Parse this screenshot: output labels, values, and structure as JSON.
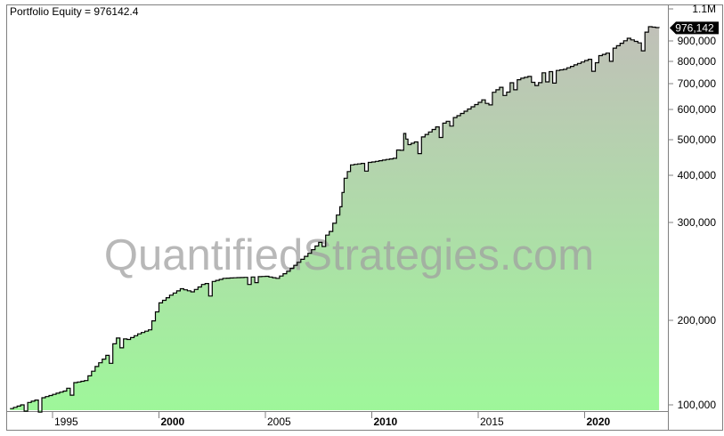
{
  "chart_data": {
    "type": "area",
    "title": "Portfolio Equity = 976142.4",
    "watermark": "QuantifiedStrategies.com",
    "last_value_label": "976,142",
    "y_scale": "log",
    "ylim": [
      97000,
      1100000
    ],
    "xlim": [
      1993.0,
      2023.6
    ],
    "grid": false,
    "x_ticks": [
      {
        "label": "1995",
        "value": 1995,
        "bold": false
      },
      {
        "label": "2000",
        "value": 2000,
        "bold": true
      },
      {
        "label": "2005",
        "value": 2005,
        "bold": false
      },
      {
        "label": "2010",
        "value": 2010,
        "bold": true
      },
      {
        "label": "2015",
        "value": 2015,
        "bold": false
      },
      {
        "label": "2020",
        "value": 2020,
        "bold": true
      }
    ],
    "y_ticks": [
      {
        "label": "100,000",
        "value": 100000
      },
      {
        "label": "200,000",
        "value": 200000
      },
      {
        "label": "300,000",
        "value": 300000
      },
      {
        "label": "400,000",
        "value": 400000
      },
      {
        "label": "500,000",
        "value": 500000
      },
      {
        "label": "600,000",
        "value": 600000
      },
      {
        "label": "700,000",
        "value": 700000
      },
      {
        "label": "800,000",
        "value": 800000
      },
      {
        "label": "900,000",
        "value": 900000
      },
      {
        "label": "1.1M",
        "value": 1100000
      }
    ],
    "series": [
      {
        "x": [
          1993.0,
          1993.5,
          1994.0,
          1994.5,
          1995.0,
          1995.5,
          1996.0,
          1996.5,
          1997.0,
          1997.5,
          1998.0,
          1998.5,
          1999.0,
          1999.5,
          2000.0,
          2000.5,
          2001.0,
          2001.5,
          2002.0,
          2003.0,
          2004.0,
          2005.0,
          2005.5,
          2006.0,
          2007.0,
          2008.0,
          2008.5,
          2008.7,
          2009.0,
          2010.0,
          2011.0,
          2011.5,
          2011.7,
          2012.0,
          2013.0,
          2014.0,
          2015.0,
          2016.0,
          2017.0,
          2018.0,
          2019.0,
          2020.0,
          2021.0,
          2022.0,
          2022.5,
          2023.0,
          2023.5
        ],
        "y": [
          97000,
          100000,
          103000,
          106000,
          109000,
          112000,
          120000,
          122000,
          137000,
          150000,
          173000,
          171000,
          179000,
          185000,
          215000,
          222000,
          228000,
          225000,
          232000,
          238000,
          239000,
          240000,
          238000,
          245000,
          264000,
          289000,
          330000,
          393000,
          427000,
          435000,
          445000,
          519000,
          485000,
          493000,
          540000,
          578000,
          626000,
          685000,
          723000,
          747000,
          763000,
          804000,
          839000,
          915000,
          890000,
          984000,
          976142
        ],
        "line_color": "#000000",
        "fill_top_color": "#c0c0b8",
        "fill_bottom_color": "#9ef79a"
      }
    ]
  }
}
